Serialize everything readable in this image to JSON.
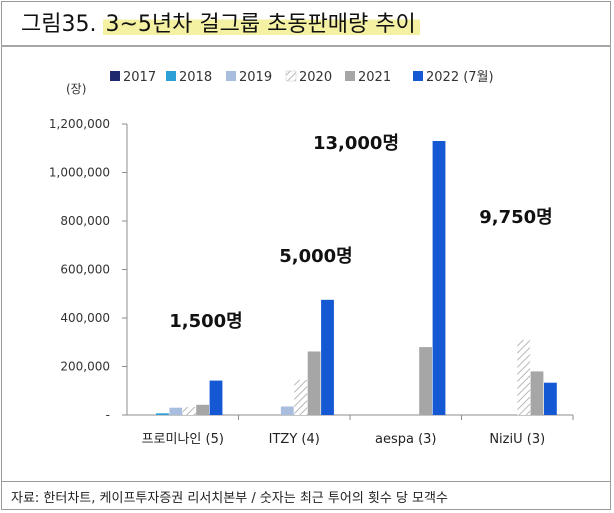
{
  "header": {
    "title_prefix": "그림35.",
    "title_highlight": "3~5년차 걸그룹 초동판매량 추이"
  },
  "footer": {
    "source": "자료: 한터차트, 케이프투자증권 리서치본부 / 숫자는 최근 투어의 횟수 당 모객수"
  },
  "colors": {
    "2017": "#1f2a6e",
    "2018": "#2ea0d8",
    "2019": "#a9bedf",
    "2020": "hatched",
    "2021": "#a6a6a6",
    "2022 (7월)": "#1458d4"
  },
  "chart_data": {
    "type": "bar",
    "ylabel": "(장)",
    "ylim": [
      0,
      1200000
    ],
    "yticks": [
      0,
      200000,
      400000,
      600000,
      800000,
      1000000,
      1200000
    ],
    "ytick_labels": [
      "-",
      "200,000",
      "400,000",
      "600,000",
      "800,000",
      "1,000,000",
      "1,200,000"
    ],
    "categories": [
      "프로미나인 (5)",
      "ITZY (4)",
      "aespa (3)",
      "NiziU (3)"
    ],
    "series": [
      {
        "name": "2017",
        "values": [
          null,
          null,
          null,
          null
        ]
      },
      {
        "name": "2018",
        "values": [
          7000,
          null,
          null,
          null
        ]
      },
      {
        "name": "2019",
        "values": [
          30000,
          35000,
          null,
          null
        ]
      },
      {
        "name": "2020",
        "values": [
          33000,
          145000,
          null,
          310000
        ]
      },
      {
        "name": "2021",
        "values": [
          42000,
          262000,
          280000,
          180000
        ]
      },
      {
        "name": "2022 (7월)",
        "values": [
          142000,
          475000,
          1130000,
          133000
        ]
      }
    ],
    "annotations": [
      "1,500명",
      "5,000명",
      "13,000명",
      "9,750명"
    ],
    "legend_position": "top",
    "grid": false
  }
}
